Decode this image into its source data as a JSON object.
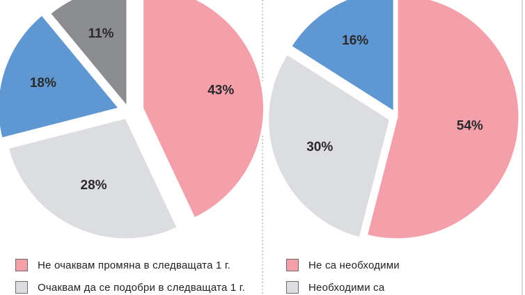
{
  "chart_data": [
    {
      "type": "pie",
      "start_angle_deg": 0,
      "direction": "clockwise",
      "slices": [
        {
          "label": "Не очаквам промяна в следващата 1 г.",
          "value": 43,
          "display": "43%",
          "color": "#f4a0aa"
        },
        {
          "label": "Очаквам да се подобри в следващата 1 г.",
          "value": 28,
          "display": "28%",
          "color": "#dcdde0"
        },
        {
          "label": "",
          "value": 18,
          "display": "18%",
          "color": "#5f97d2"
        },
        {
          "label": "",
          "value": 11,
          "display": "11%",
          "color": "#8c8d91"
        }
      ],
      "legend": [
        "Не очаквам промяна в следващата 1 г.",
        "Очаквам да се подобри в следващата 1 г."
      ]
    },
    {
      "type": "pie",
      "start_angle_deg": 0,
      "direction": "clockwise",
      "slices": [
        {
          "label": "Не са необходими",
          "value": 54,
          "display": "54%",
          "color": "#f4a0aa"
        },
        {
          "label": "Необходими са",
          "value": 30,
          "display": "30%",
          "color": "#dcdde0"
        },
        {
          "label": "",
          "value": 16,
          "display": "16%",
          "color": "#5f97d2"
        }
      ],
      "legend": [
        "Не са необходими",
        "Необходими са"
      ]
    }
  ]
}
